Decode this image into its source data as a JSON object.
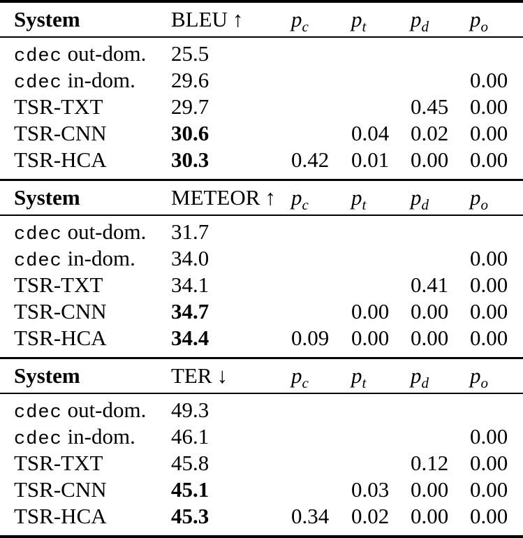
{
  "page": {
    "background": "#ffffff",
    "text_color": "#000000",
    "rule_color": "#000000"
  },
  "sections": [
    {
      "id": "bleu",
      "header": {
        "system": "System",
        "metric_label": "BLEU",
        "metric_arrow": "↑",
        "p_cols": [
          {
            "base": "p",
            "sub": "c"
          },
          {
            "base": "p",
            "sub": "t"
          },
          {
            "base": "p",
            "sub": "d"
          },
          {
            "base": "p",
            "sub": "o"
          }
        ]
      },
      "rows": [
        {
          "system_tt": "cdec",
          "system_text": " out-dom.",
          "score": "25.5",
          "score_bold": false,
          "pc": "",
          "pt": "",
          "pd": "",
          "po": ""
        },
        {
          "system_tt": "cdec",
          "system_text": " in-dom.",
          "score": "29.6",
          "score_bold": false,
          "pc": "",
          "pt": "",
          "pd": "",
          "po": "0.00"
        },
        {
          "system_tt": "",
          "system_text": "TSR-TXT",
          "score": "29.7",
          "score_bold": false,
          "pc": "",
          "pt": "",
          "pd": "0.45",
          "po": "0.00"
        },
        {
          "system_tt": "",
          "system_text": "TSR-CNN",
          "score": "30.6",
          "score_bold": true,
          "pc": "",
          "pt": "0.04",
          "pd": "0.02",
          "po": "0.00"
        },
        {
          "system_tt": "",
          "system_text": "TSR-HCA",
          "score": "30.3",
          "score_bold": true,
          "pc": "0.42",
          "pt": "0.01",
          "pd": "0.00",
          "po": "0.00"
        }
      ]
    },
    {
      "id": "meteor",
      "header": {
        "system": "System",
        "metric_label": "METEOR",
        "metric_arrow": "↑",
        "p_cols": [
          {
            "base": "p",
            "sub": "c"
          },
          {
            "base": "p",
            "sub": "t"
          },
          {
            "base": "p",
            "sub": "d"
          },
          {
            "base": "p",
            "sub": "o"
          }
        ]
      },
      "rows": [
        {
          "system_tt": "cdec",
          "system_text": " out-dom.",
          "score": "31.7",
          "score_bold": false,
          "pc": "",
          "pt": "",
          "pd": "",
          "po": ""
        },
        {
          "system_tt": "cdec",
          "system_text": " in-dom.",
          "score": "34.0",
          "score_bold": false,
          "pc": "",
          "pt": "",
          "pd": "",
          "po": "0.00"
        },
        {
          "system_tt": "",
          "system_text": "TSR-TXT",
          "score": "34.1",
          "score_bold": false,
          "pc": "",
          "pt": "",
          "pd": "0.41",
          "po": "0.00"
        },
        {
          "system_tt": "",
          "system_text": "TSR-CNN",
          "score": "34.7",
          "score_bold": true,
          "pc": "",
          "pt": "0.00",
          "pd": "0.00",
          "po": "0.00"
        },
        {
          "system_tt": "",
          "system_text": "TSR-HCA",
          "score": "34.4",
          "score_bold": true,
          "pc": "0.09",
          "pt": "0.00",
          "pd": "0.00",
          "po": "0.00"
        }
      ]
    },
    {
      "id": "ter",
      "header": {
        "system": "System",
        "metric_label": "TER",
        "metric_arrow": "↓",
        "p_cols": [
          {
            "base": "p",
            "sub": "c"
          },
          {
            "base": "p",
            "sub": "t"
          },
          {
            "base": "p",
            "sub": "d"
          },
          {
            "base": "p",
            "sub": "o"
          }
        ]
      },
      "rows": [
        {
          "system_tt": "cdec",
          "system_text": " out-dom.",
          "score": "49.3",
          "score_bold": false,
          "pc": "",
          "pt": "",
          "pd": "",
          "po": ""
        },
        {
          "system_tt": "cdec",
          "system_text": " in-dom.",
          "score": "46.1",
          "score_bold": false,
          "pc": "",
          "pt": "",
          "pd": "",
          "po": "0.00"
        },
        {
          "system_tt": "",
          "system_text": "TSR-TXT",
          "score": "45.8",
          "score_bold": false,
          "pc": "",
          "pt": "",
          "pd": "0.12",
          "po": "0.00"
        },
        {
          "system_tt": "",
          "system_text": "TSR-CNN",
          "score": "45.1",
          "score_bold": true,
          "pc": "",
          "pt": "0.03",
          "pd": "0.00",
          "po": "0.00"
        },
        {
          "system_tt": "",
          "system_text": "TSR-HCA",
          "score": "45.3",
          "score_bold": true,
          "pc": "0.34",
          "pt": "0.02",
          "pd": "0.00",
          "po": "0.00"
        }
      ]
    }
  ]
}
